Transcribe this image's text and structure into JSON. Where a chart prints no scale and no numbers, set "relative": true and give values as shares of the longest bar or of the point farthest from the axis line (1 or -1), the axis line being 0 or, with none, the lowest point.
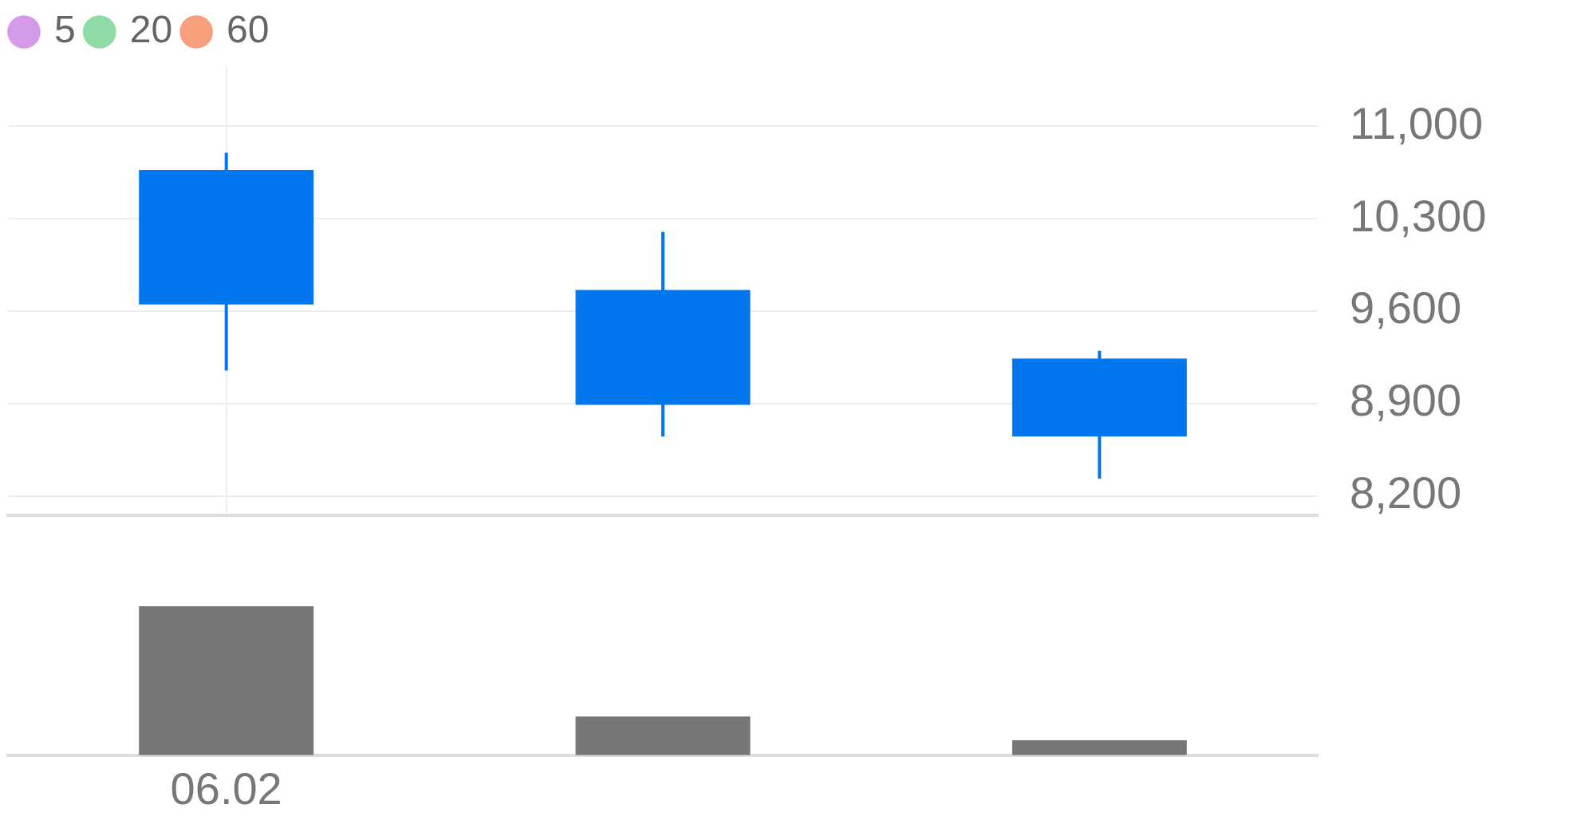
{
  "chart_data": [
    {
      "type": "candlestick",
      "categories": [
        null,
        null,
        null
      ],
      "series": [
        {
          "type": "candlestick",
          "color": "#0077ee",
          "ohlc": [
            [
              10670,
              10800,
              9150,
              9650
            ],
            [
              9760,
              10200,
              8650,
              8890
            ],
            [
              9240,
              9300,
              8330,
              8650
            ]
          ]
        },
        {
          "type": "line",
          "name": "5",
          "color": "#d39be8",
          "values": [
            null,
            null,
            null
          ]
        },
        {
          "type": "line",
          "name": "20",
          "color": "#8fdba8",
          "values": [
            null,
            null,
            null
          ]
        },
        {
          "type": "line",
          "name": "60",
          "color": "#f5a07a",
          "values": [
            null,
            null,
            null
          ]
        }
      ],
      "ylim": [
        8050,
        11450
      ],
      "yticks": [
        {
          "value": 8200,
          "label": "8,200"
        },
        {
          "value": 8900,
          "label": "8,900"
        },
        {
          "value": 9600,
          "label": "9,600"
        },
        {
          "value": 10300,
          "label": "10,300"
        },
        {
          "value": 11000,
          "label": "11,000"
        }
      ],
      "grid": true,
      "legend": "top left",
      "tick_labels": "y"
    },
    {
      "type": "bar",
      "categories": [
        "06.02",
        null,
        null
      ],
      "relative": true,
      "color": "#777777",
      "values": [
        1,
        0.26,
        0.1
      ],
      "grid": false,
      "tick_labels": "x"
    }
  ]
}
